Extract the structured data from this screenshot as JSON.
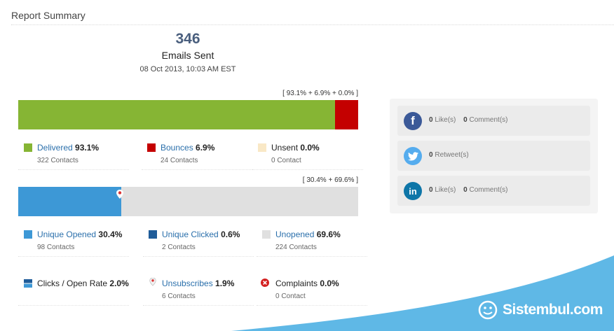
{
  "header": {
    "title": "Report Summary"
  },
  "summary": {
    "count": "346",
    "label": "Emails Sent",
    "date": "08 Oct 2013, 10:03 AM EST"
  },
  "delivery_bar": {
    "caption": "[ 93.1% + 6.9% + 0.0% ]",
    "segments": [
      {
        "name": "Delivered",
        "value": 93.1,
        "color": "#86b534"
      },
      {
        "name": "Bounces",
        "value": 6.9,
        "color": "#c40000"
      },
      {
        "name": "Unsent",
        "value": 0.0,
        "color": "#f9e8c6"
      }
    ]
  },
  "open_bar": {
    "caption": "[ 30.4% + 69.6% ]",
    "segments": [
      {
        "name": "Unique Opened",
        "value": 30.4,
        "color": "#3d98d6"
      },
      {
        "name": "Unopened",
        "value": 69.6,
        "color": "#e0e0e0"
      }
    ]
  },
  "delivery_stats": [
    {
      "name": "Delivered",
      "pct": "93.1%",
      "sub": "322 Contacts",
      "color": "#86b534"
    },
    {
      "name": "Bounces",
      "pct": "6.9%",
      "sub": "24 Contacts",
      "color": "#c40000"
    },
    {
      "name": "Unsent",
      "pct": "0.0%",
      "sub": "0 Contact",
      "color": "#f9e8c6"
    }
  ],
  "open_stats": [
    {
      "name": "Unique Opened",
      "pct": "30.4%",
      "sub": "98 Contacts",
      "color": "#3d98d6"
    },
    {
      "name": "Unique Clicked",
      "pct": "0.6%",
      "sub": "2 Contacts",
      "color": "#1f5c99"
    },
    {
      "name": "Unopened",
      "pct": "69.6%",
      "sub": "224 Contacts",
      "color": "#e0e0e0"
    }
  ],
  "other_stats": [
    {
      "name": "Clicks / Open Rate",
      "pct": "2.0%",
      "icon": "click-rate-icon"
    },
    {
      "name": "Unsubscribes",
      "pct": "1.9%",
      "sub": "6 Contacts",
      "icon": "map-pin-icon"
    },
    {
      "name": "Complaints",
      "pct": "0.0%",
      "sub": "0 Contact",
      "icon": "complaint-x-icon"
    }
  ],
  "social": {
    "facebook": {
      "likes_count": "0",
      "likes_label": "Like(s)",
      "comments_count": "0",
      "comments_label": "Comment(s)",
      "color": "#3b5998"
    },
    "twitter": {
      "retweets_count": "0",
      "retweets_label": "Retweet(s)",
      "color": "#55acee"
    },
    "linkedin": {
      "likes_count": "0",
      "likes_label": "Like(s)",
      "comments_count": "0",
      "comments_label": "Comment(s)",
      "color": "#0e76a8"
    }
  },
  "watermark": {
    "brand": "Sistembul.com",
    "color": "#5fb8e6"
  }
}
